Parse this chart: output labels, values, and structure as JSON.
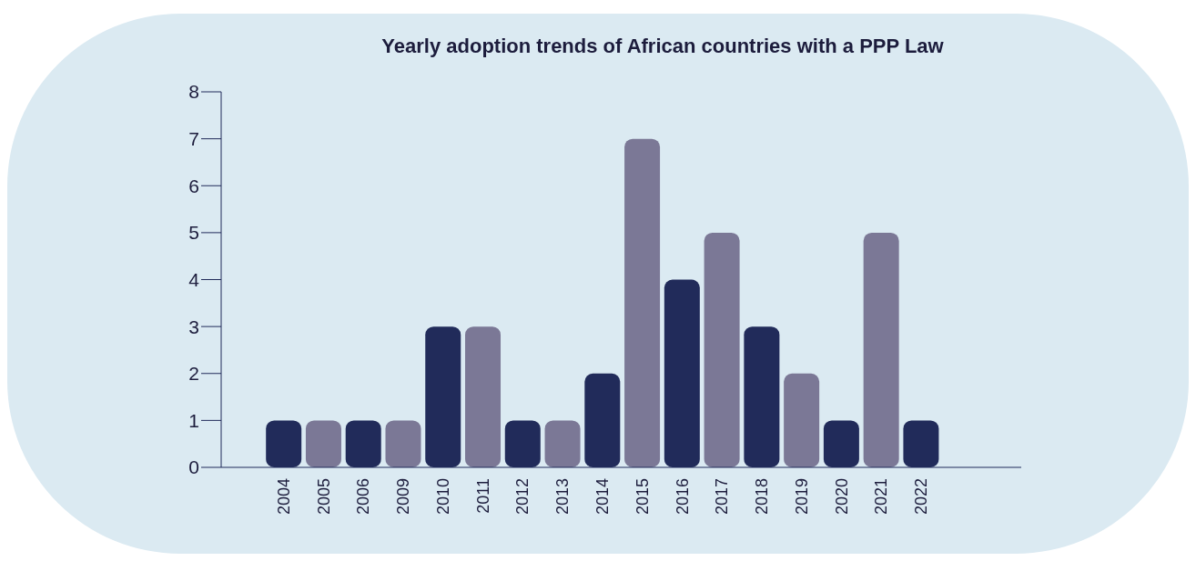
{
  "chart_data": {
    "type": "bar",
    "title": "Yearly adoption trends of African countries with a PPP Law",
    "categories": [
      "2004",
      "2005",
      "2006",
      "2009",
      "2010",
      "2011",
      "2012",
      "2013",
      "2014",
      "2015",
      "2016",
      "2017",
      "2018",
      "2019",
      "2020",
      "2021",
      "2022"
    ],
    "values": [
      1,
      1,
      1,
      1,
      3,
      3,
      1,
      1,
      2,
      7,
      4,
      5,
      3,
      2,
      1,
      5,
      1
    ],
    "colors": [
      "#212b5a",
      "#7b7896",
      "#212b5a",
      "#7b7896",
      "#212b5a",
      "#7b7896",
      "#212b5a",
      "#7b7896",
      "#212b5a",
      "#7b7896",
      "#212b5a",
      "#7b7896",
      "#212b5a",
      "#7b7896",
      "#212b5a",
      "#7b7896",
      "#212b5a"
    ],
    "ylim": [
      0,
      8
    ],
    "yticks": [
      0,
      1,
      2,
      3,
      4,
      5,
      6,
      7,
      8
    ],
    "grid": false,
    "legend": false
  }
}
